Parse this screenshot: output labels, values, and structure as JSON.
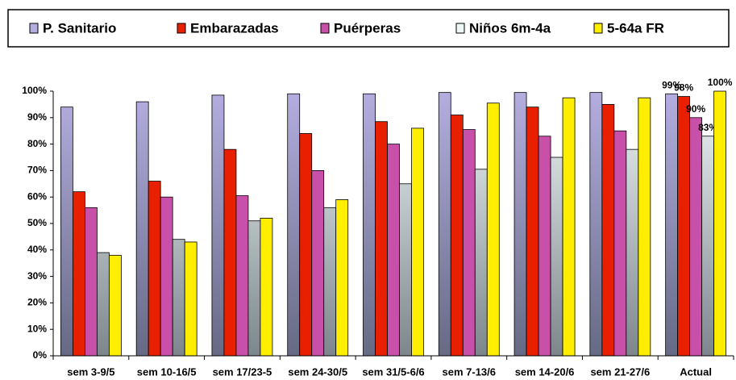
{
  "chart_data": {
    "type": "bar",
    "categories": [
      "sem 3-9/5",
      "sem 10-16/5",
      "sem 17/23-5",
      "sem 24-30/5",
      "sem 31/5-6/6",
      "sem 7-13/6",
      "sem 14-20/6",
      "sem 21-27/6",
      "Actual"
    ],
    "series": [
      {
        "name": "P. Sanitario",
        "color": "#b4aee0",
        "values": [
          94,
          96,
          98.5,
          99,
          99,
          99.5,
          99.5,
          99.5,
          99
        ],
        "value_labels": [
          null,
          null,
          null,
          null,
          null,
          null,
          null,
          null,
          "99%"
        ]
      },
      {
        "name": "Embarazadas",
        "color": "#e82000",
        "values": [
          62,
          66,
          78,
          84,
          88.5,
          91,
          94,
          95,
          98
        ],
        "value_labels": [
          null,
          null,
          null,
          null,
          null,
          null,
          null,
          null,
          "98%"
        ]
      },
      {
        "name": "Puérperas",
        "color": "#c850a8",
        "values": [
          56,
          60,
          60.5,
          70,
          80,
          85.5,
          83,
          85,
          90
        ],
        "value_labels": [
          null,
          null,
          null,
          null,
          null,
          null,
          null,
          null,
          "90%"
        ]
      },
      {
        "name": "Niños 6m-4a",
        "color": "#eef6f6",
        "values": [
          39,
          44,
          51,
          56,
          65,
          70.5,
          75,
          78,
          83
        ],
        "value_labels": [
          null,
          null,
          null,
          null,
          null,
          null,
          null,
          null,
          "83%"
        ]
      },
      {
        "name": "5-64a FR",
        "color": "#ffee00",
        "values": [
          38,
          43,
          52,
          59,
          86,
          95.5,
          97.5,
          97.5,
          100
        ],
        "value_labels": [
          null,
          null,
          null,
          null,
          null,
          null,
          null,
          null,
          "100%"
        ]
      }
    ],
    "ylim": [
      0,
      100
    ],
    "yticks": [
      {
        "value": 0,
        "label": "0%"
      },
      {
        "value": 10,
        "label": "10%"
      },
      {
        "value": 20,
        "label": "20%"
      },
      {
        "value": 30,
        "label": "30%"
      },
      {
        "value": 40,
        "label": "40%"
      },
      {
        "value": 50,
        "label": "50%"
      },
      {
        "value": 60,
        "label": "60%"
      },
      {
        "value": 70,
        "label": "70%"
      },
      {
        "value": 80,
        "label": "80%"
      },
      {
        "value": 90,
        "label": "90%"
      },
      {
        "value": 100,
        "label": "100%"
      }
    ],
    "grid": false,
    "legend": "top"
  }
}
